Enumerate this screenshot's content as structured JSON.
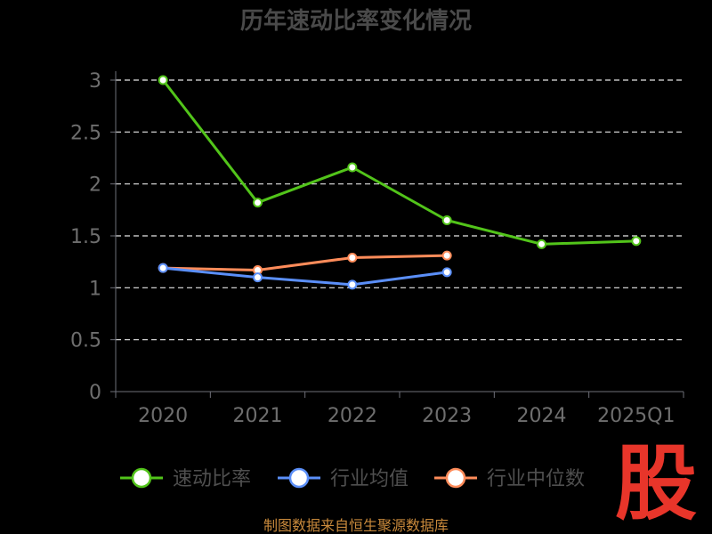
{
  "chart_data": {
    "type": "line",
    "title": "历年速动比率变化情况",
    "categories": [
      "2020",
      "2021",
      "2022",
      "2023",
      "2024",
      "2025Q1"
    ],
    "y_ticks": [
      "0",
      "0.5",
      "1",
      "1.5",
      "2",
      "2.5",
      "3"
    ],
    "ylim": [
      0,
      3
    ],
    "grid": true,
    "legend_position": "bottom",
    "series": [
      {
        "name": "速动比率",
        "color": "#52c41a",
        "values": [
          3.0,
          1.82,
          2.16,
          1.65,
          1.42,
          1.45
        ]
      },
      {
        "name": "行业均值",
        "color": "#5b8ff9",
        "values": [
          1.19,
          1.1,
          1.03,
          1.15,
          null,
          null
        ]
      },
      {
        "name": "行业中位数",
        "color": "#ff8c5a",
        "values": [
          1.19,
          1.17,
          1.29,
          1.31,
          null,
          null
        ]
      }
    ]
  },
  "footer": {
    "source": "制图数据来自恒生聚源数据库"
  },
  "brand": {
    "logo_text": "股"
  }
}
